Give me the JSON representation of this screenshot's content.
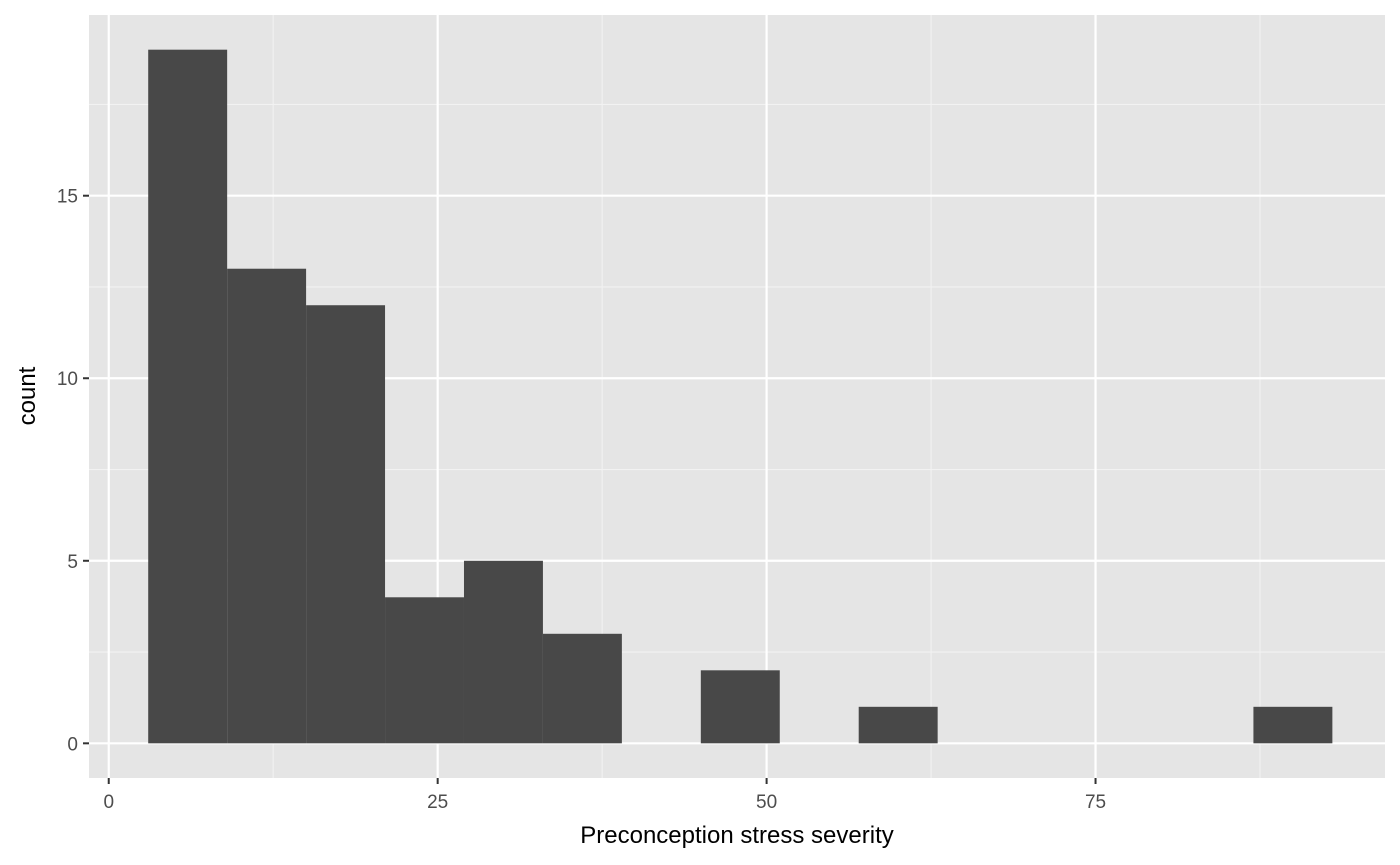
{
  "chart_data": {
    "type": "bar",
    "subtype": "histogram",
    "title": "",
    "xlabel": "Preconception stress severity",
    "ylabel": "count",
    "xlim": [
      -1.5,
      97
    ],
    "ylim": [
      -0.95,
      19.95
    ],
    "x_ticks": [
      0,
      25,
      50,
      75
    ],
    "x_tick_labels": [
      "0",
      "25",
      "50",
      "75"
    ],
    "y_ticks": [
      0,
      5,
      10,
      15
    ],
    "y_tick_labels": [
      "0",
      "5",
      "10",
      "15"
    ],
    "x_minor_grid": [
      12.5,
      37.5,
      62.5,
      87.5
    ],
    "y_minor_grid": [
      2.5,
      7.5,
      12.5,
      17.5
    ],
    "bin_width": 6,
    "bins": [
      {
        "x_start": 3,
        "x_end": 9,
        "count": 19
      },
      {
        "x_start": 9,
        "x_end": 15,
        "count": 13
      },
      {
        "x_start": 15,
        "x_end": 21,
        "count": 12
      },
      {
        "x_start": 21,
        "x_end": 27,
        "count": 4
      },
      {
        "x_start": 27,
        "x_end": 33,
        "count": 5
      },
      {
        "x_start": 33,
        "x_end": 39,
        "count": 3
      },
      {
        "x_start": 39,
        "x_end": 45,
        "count": 0
      },
      {
        "x_start": 45,
        "x_end": 51,
        "count": 2
      },
      {
        "x_start": 51,
        "x_end": 57,
        "count": 0
      },
      {
        "x_start": 57,
        "x_end": 63,
        "count": 1
      },
      {
        "x_start": 63,
        "x_end": 69,
        "count": 0
      },
      {
        "x_start": 69,
        "x_end": 75,
        "count": 0
      },
      {
        "x_start": 75,
        "x_end": 81,
        "count": 0
      },
      {
        "x_start": 81,
        "x_end": 87,
        "count": 0
      },
      {
        "x_start": 87,
        "x_end": 93,
        "count": 1
      }
    ],
    "grid": true,
    "legend": "none",
    "colors": {
      "panel_background": "#e5e5e5",
      "grid_major": "#ffffff",
      "grid_minor": "#f2f2f2",
      "bar_fill": "#484848",
      "tick_text": "#4d4d4d",
      "tick_mark": "#333333",
      "axis_title": "#000000"
    }
  }
}
